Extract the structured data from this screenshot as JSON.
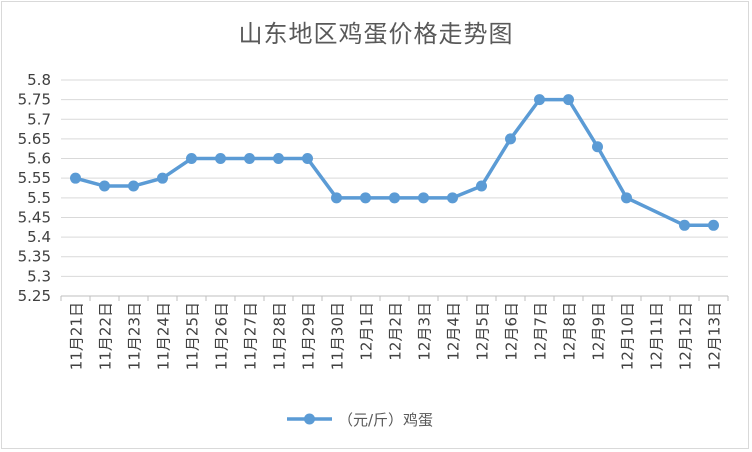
{
  "chart_data": {
    "type": "line",
    "title": "山东地区鸡蛋价格走势图",
    "categories": [
      "11月21日",
      "11月22日",
      "11月23日",
      "11月24日",
      "11月25日",
      "11月26日",
      "11月27日",
      "11月28日",
      "11月29日",
      "11月30日",
      "12月1日",
      "12月2日",
      "12月3日",
      "12月4日",
      "12月5日",
      "12月6日",
      "12月7日",
      "12月8日",
      "12月9日",
      "12月10日",
      "12月11日",
      "12月12日",
      "12月13日"
    ],
    "series": [
      {
        "name": "（元/斤）鸡蛋",
        "values": [
          5.55,
          5.53,
          5.53,
          5.55,
          5.6,
          5.6,
          5.6,
          5.6,
          5.6,
          5.5,
          5.5,
          5.5,
          5.5,
          5.5,
          5.53,
          5.65,
          5.75,
          5.75,
          5.63,
          5.5,
          null,
          5.43,
          5.43
        ]
      }
    ],
    "y_ticks": [
      "5.25",
      "5.3",
      "5.35",
      "5.4",
      "5.45",
      "5.5",
      "5.55",
      "5.6",
      "5.65",
      "5.7",
      "5.75",
      "5.8"
    ],
    "ylim": [
      5.25,
      5.8
    ],
    "xlabel": "",
    "ylabel": "",
    "grid": true,
    "legend": "bottom",
    "colors": {
      "line": "#5b9bd5",
      "grid": "#d9d9d9",
      "axis": "#bfbfbf"
    }
  }
}
